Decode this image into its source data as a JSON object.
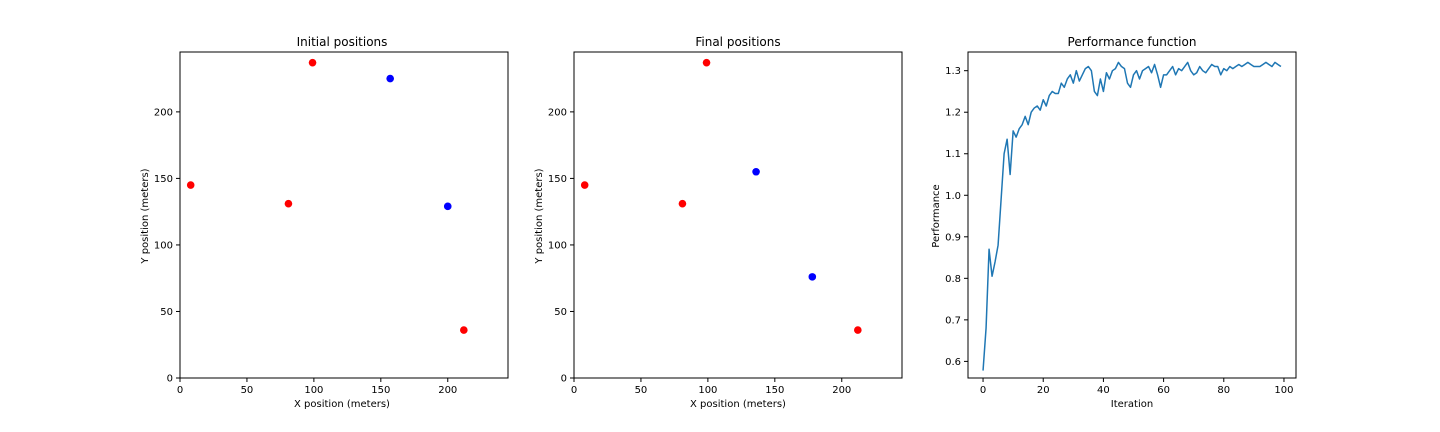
{
  "colors": {
    "red": "#ff0000",
    "blue": "#0000ff",
    "line": "#1f77b4",
    "axis": "#000000"
  },
  "chart_data": [
    {
      "type": "scatter",
      "title": "Initial positions",
      "xlabel": "X position (meters)",
      "ylabel": "Y position (meters)",
      "xlim": [
        0,
        245
      ],
      "ylim": [
        0,
        245
      ],
      "xticks": [
        0,
        50,
        100,
        150,
        200
      ],
      "yticks": [
        0,
        50,
        100,
        150,
        200
      ],
      "series": [
        {
          "color": "red",
          "x": [
            8,
            81,
            99,
            212
          ],
          "y": [
            145,
            131,
            237,
            36
          ]
        },
        {
          "color": "blue",
          "x": [
            157,
            200
          ],
          "y": [
            225,
            129
          ]
        }
      ]
    },
    {
      "type": "scatter",
      "title": "Final positions",
      "xlabel": "X position (meters)",
      "ylabel": "Y position (meters)",
      "xlim": [
        0,
        245
      ],
      "ylim": [
        0,
        245
      ],
      "xticks": [
        0,
        50,
        100,
        150,
        200
      ],
      "yticks": [
        0,
        50,
        100,
        150,
        200
      ],
      "series": [
        {
          "color": "red",
          "x": [
            8,
            81,
            99,
            212
          ],
          "y": [
            145,
            131,
            237,
            36
          ]
        },
        {
          "color": "blue",
          "x": [
            136,
            178
          ],
          "y": [
            155,
            76
          ]
        }
      ]
    },
    {
      "type": "line",
      "title": "Performance function",
      "xlabel": "Iteration",
      "ylabel": "Performance",
      "xlim": [
        -5,
        104
      ],
      "ylim": [
        0.56,
        1.345
      ],
      "xticks": [
        0,
        20,
        40,
        60,
        80,
        100
      ],
      "yticks": [
        0.6,
        0.7,
        0.8,
        0.9,
        1.0,
        1.1,
        1.2,
        1.3
      ],
      "ytick_decimals": 1,
      "series": [
        {
          "color": "line",
          "x": [
            0,
            1,
            2,
            3,
            4,
            5,
            6,
            7,
            8,
            9,
            10,
            11,
            12,
            13,
            14,
            15,
            16,
            17,
            18,
            19,
            20,
            21,
            22,
            23,
            24,
            25,
            26,
            27,
            28,
            29,
            30,
            31,
            32,
            33,
            34,
            35,
            36,
            37,
            38,
            39,
            40,
            41,
            42,
            43,
            44,
            45,
            46,
            47,
            48,
            49,
            50,
            51,
            52,
            53,
            54,
            55,
            56,
            57,
            58,
            59,
            60,
            61,
            62,
            63,
            64,
            65,
            66,
            67,
            68,
            69,
            70,
            71,
            72,
            73,
            74,
            75,
            76,
            77,
            78,
            79,
            80,
            81,
            82,
            83,
            84,
            85,
            86,
            87,
            88,
            89,
            90,
            91,
            92,
            93,
            94,
            95,
            96,
            97,
            98,
            99
          ],
          "y": [
            0.578,
            0.68,
            0.87,
            0.805,
            0.84,
            0.88,
            0.99,
            1.1,
            1.135,
            1.05,
            1.155,
            1.14,
            1.16,
            1.17,
            1.19,
            1.17,
            1.2,
            1.21,
            1.215,
            1.205,
            1.23,
            1.215,
            1.24,
            1.25,
            1.245,
            1.245,
            1.27,
            1.26,
            1.28,
            1.29,
            1.27,
            1.3,
            1.275,
            1.29,
            1.305,
            1.31,
            1.3,
            1.25,
            1.24,
            1.28,
            1.25,
            1.295,
            1.28,
            1.3,
            1.305,
            1.32,
            1.31,
            1.305,
            1.27,
            1.26,
            1.29,
            1.3,
            1.28,
            1.3,
            1.305,
            1.31,
            1.295,
            1.315,
            1.29,
            1.26,
            1.29,
            1.29,
            1.3,
            1.31,
            1.29,
            1.305,
            1.3,
            1.31,
            1.32,
            1.3,
            1.29,
            1.295,
            1.31,
            1.3,
            1.295,
            1.305,
            1.315,
            1.31,
            1.31,
            1.29,
            1.305,
            1.3,
            1.31,
            1.305,
            1.31,
            1.315,
            1.31,
            1.315,
            1.32,
            1.315,
            1.31,
            1.31,
            1.31,
            1.315,
            1.32,
            1.315,
            1.31,
            1.32,
            1.315,
            1.31
          ]
        }
      ]
    }
  ]
}
